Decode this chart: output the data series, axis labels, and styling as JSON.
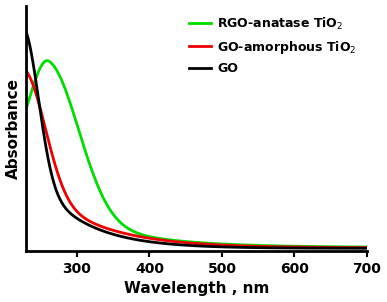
{
  "title": "",
  "xlabel": "Wavelength , nm",
  "ylabel": "Absorbance",
  "xlim": [
    230,
    700
  ],
  "ylim": [
    0,
    1.12
  ],
  "xticks": [
    300,
    400,
    500,
    600,
    700
  ],
  "legend": [
    {
      "label": "RGO-anatase TiO$_2$",
      "color": "#00dd00"
    },
    {
      "label": "GO-amorphous TiO$_2$",
      "color": "#ee0000"
    },
    {
      "label": "GO",
      "color": "#000000"
    }
  ],
  "linewidth": 2.0,
  "background_color": "#ffffff",
  "legend_fontsize": 9.0,
  "axis_fontsize": 11,
  "tick_fontsize": 10
}
